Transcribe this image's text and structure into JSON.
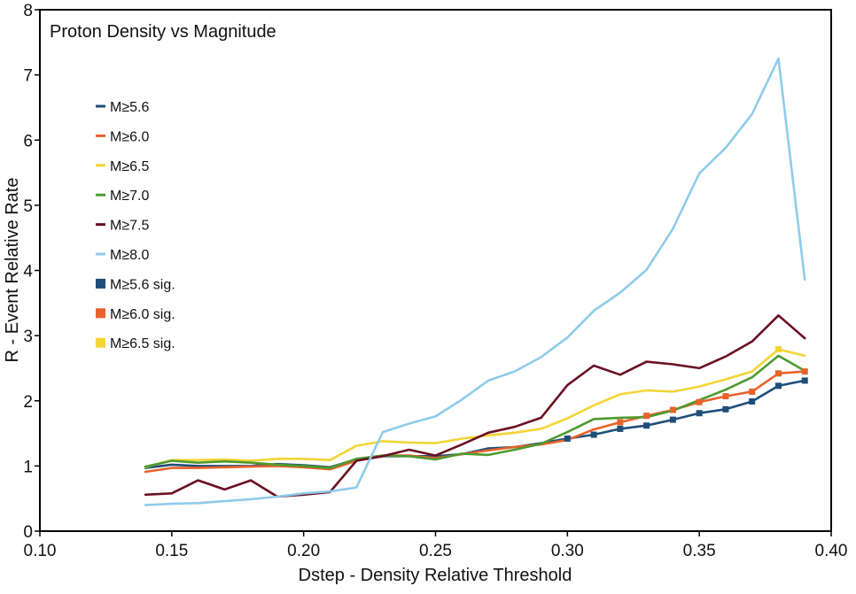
{
  "chart_data": {
    "type": "line",
    "title": "Proton Density vs Magnitude",
    "xlabel": "Dstep - Density Relative Threshold",
    "ylabel": "R - Event Relative Rate",
    "xlim": [
      0.1,
      0.4
    ],
    "ylim": [
      0,
      8
    ],
    "xticks": [
      "0.10",
      "0.15",
      "0.20",
      "0.25",
      "0.30",
      "0.35",
      "0.40"
    ],
    "yticks": [
      "0",
      "1",
      "2",
      "3",
      "4",
      "5",
      "6",
      "7",
      "8"
    ],
    "grid": false,
    "legend_position": "left",
    "x": [
      0.14,
      0.15,
      0.16,
      0.17,
      0.18,
      0.19,
      0.2,
      0.21,
      0.22,
      0.23,
      0.24,
      0.25,
      0.26,
      0.27,
      0.28,
      0.29,
      0.3,
      0.31,
      0.32,
      0.33,
      0.34,
      0.35,
      0.36,
      0.37,
      0.38,
      0.39
    ],
    "series": [
      {
        "name": "M≥5.6",
        "color": "#1f4e79",
        "style": "line",
        "values": [
          0.97,
          1.02,
          1.0,
          1.0,
          1.0,
          1.03,
          1.01,
          0.98,
          1.1,
          1.15,
          1.15,
          1.15,
          1.18,
          1.27,
          1.29,
          1.35,
          1.42,
          1.48,
          1.57,
          1.62,
          1.71,
          1.81,
          1.87,
          1.99,
          2.23,
          2.31
        ]
      },
      {
        "name": "M≥6.0",
        "color": "#e8622a",
        "style": "line",
        "values": [
          0.91,
          0.97,
          0.97,
          0.98,
          0.99,
          1.0,
          0.98,
          0.95,
          1.08,
          1.16,
          1.16,
          1.12,
          1.18,
          1.24,
          1.29,
          1.33,
          1.4,
          1.56,
          1.67,
          1.77,
          1.86,
          1.98,
          2.07,
          2.14,
          2.42,
          2.45
        ]
      },
      {
        "name": "M≥6.5",
        "color": "#f2d535",
        "style": "line",
        "values": [
          0.98,
          1.09,
          1.09,
          1.1,
          1.08,
          1.11,
          1.11,
          1.09,
          1.31,
          1.38,
          1.36,
          1.35,
          1.42,
          1.47,
          1.51,
          1.57,
          1.73,
          1.93,
          2.1,
          2.16,
          2.14,
          2.22,
          2.33,
          2.45,
          2.79,
          2.69
        ]
      },
      {
        "name": "M≥7.0",
        "color": "#4e9a2e",
        "style": "line",
        "values": [
          0.99,
          1.08,
          1.05,
          1.07,
          1.05,
          1.02,
          1.0,
          0.97,
          1.11,
          1.16,
          1.15,
          1.1,
          1.19,
          1.17,
          1.25,
          1.34,
          1.52,
          1.72,
          1.74,
          1.75,
          1.85,
          2.01,
          2.17,
          2.36,
          2.69,
          2.46
        ]
      },
      {
        "name": "M≥7.5",
        "color": "#6b1022",
        "style": "line",
        "values": [
          0.56,
          0.58,
          0.78,
          0.64,
          0.78,
          0.53,
          0.56,
          0.6,
          1.08,
          1.15,
          1.25,
          1.16,
          1.33,
          1.51,
          1.6,
          1.74,
          2.24,
          2.54,
          2.4,
          2.6,
          2.56,
          2.5,
          2.68,
          2.91,
          3.31,
          2.96
        ]
      },
      {
        "name": "M≥8.0",
        "color": "#8fcbeb",
        "style": "line",
        "values": [
          0.4,
          0.42,
          0.43,
          0.46,
          0.49,
          0.53,
          0.58,
          0.61,
          0.67,
          1.52,
          1.65,
          1.76,
          2.02,
          2.31,
          2.45,
          2.67,
          2.97,
          3.38,
          3.66,
          4.01,
          4.64,
          5.49,
          5.88,
          6.4,
          7.25,
          3.86
        ]
      },
      {
        "name": "M≥5.6 sig.",
        "color": "#1f4e79",
        "style": "marker",
        "series_ref": "M≥5.6",
        "x": [
          0.3,
          0.31,
          0.32,
          0.33,
          0.34,
          0.35,
          0.36,
          0.37,
          0.38,
          0.39
        ],
        "values": [
          1.42,
          1.48,
          1.57,
          1.62,
          1.71,
          1.81,
          1.87,
          1.99,
          2.23,
          2.31
        ]
      },
      {
        "name": "M≥6.0 sig.",
        "color": "#e8622a",
        "style": "marker",
        "series_ref": "M≥6.0",
        "x": [
          0.32,
          0.33,
          0.34,
          0.35,
          0.36,
          0.37,
          0.38,
          0.39
        ],
        "values": [
          1.67,
          1.77,
          1.86,
          1.98,
          2.07,
          2.14,
          2.42,
          2.45
        ]
      },
      {
        "name": "M≥6.5 sig.",
        "color": "#f2d535",
        "style": "marker",
        "series_ref": "M≥6.5",
        "x": [
          0.38
        ],
        "values": [
          2.79
        ]
      }
    ]
  }
}
